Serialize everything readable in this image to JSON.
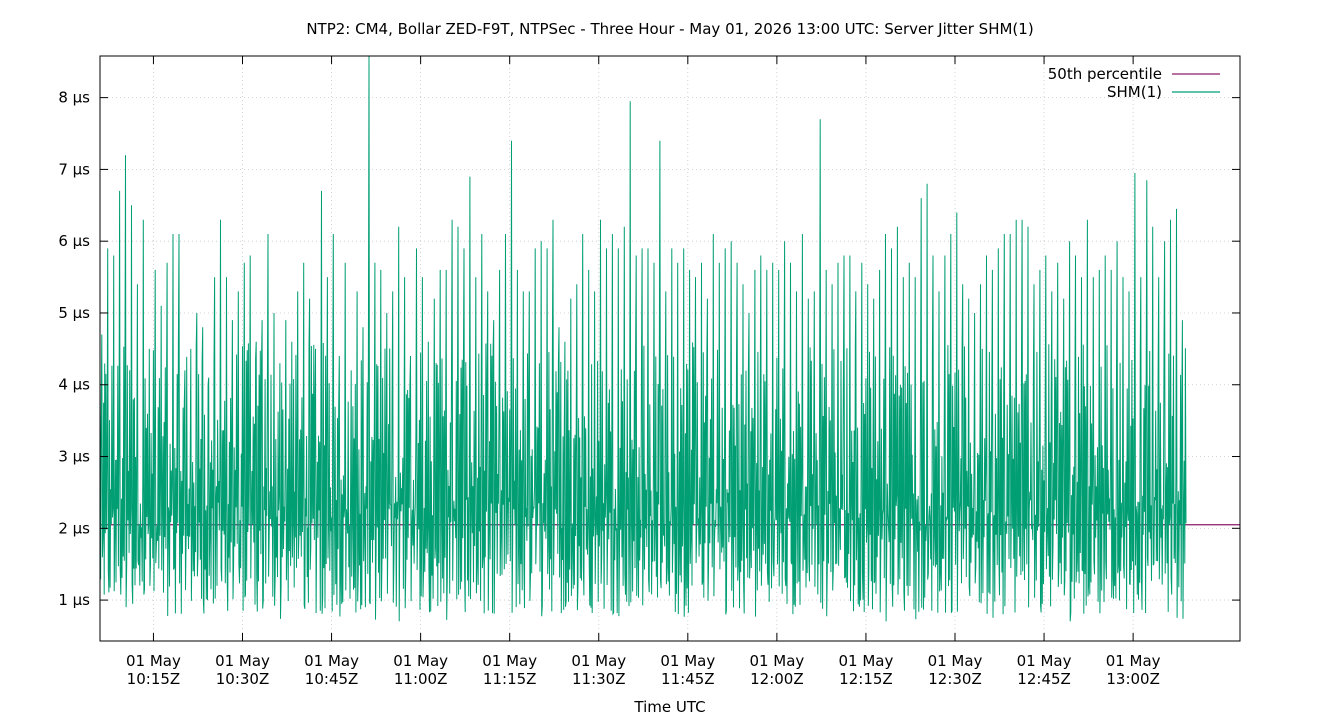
{
  "chart_data": {
    "type": "line",
    "title": "NTP2: CM4, Bollar ZED-F9T, NTPSec - Three Hour - May 01, 2026 13:00 UTC: Server Jitter SHM(1)",
    "xlabel": "Time UTC",
    "ylabel": "",
    "x_range": [
      "10:06",
      "13:18"
    ],
    "ylim": [
      0.43,
      8.58
    ],
    "y_ticks": [
      {
        "value": 1,
        "label": "1 µs"
      },
      {
        "value": 2,
        "label": "2 µs"
      },
      {
        "value": 3,
        "label": "3 µs"
      },
      {
        "value": 4,
        "label": "4 µs"
      },
      {
        "value": 5,
        "label": "5 µs"
      },
      {
        "value": 6,
        "label": "6 µs"
      },
      {
        "value": 7,
        "label": "7 µs"
      },
      {
        "value": 8,
        "label": "8 µs"
      }
    ],
    "x_ticks": [
      {
        "time": "10:15",
        "line1": "01 May",
        "line2": "10:15Z"
      },
      {
        "time": "10:30",
        "line1": "01 May",
        "line2": "10:30Z"
      },
      {
        "time": "10:45",
        "line1": "01 May",
        "line2": "10:45Z"
      },
      {
        "time": "11:00",
        "line1": "01 May",
        "line2": "11:00Z"
      },
      {
        "time": "11:15",
        "line1": "01 May",
        "line2": "11:15Z"
      },
      {
        "time": "11:30",
        "line1": "01 May",
        "line2": "11:30Z"
      },
      {
        "time": "11:45",
        "line1": "01 May",
        "line2": "11:45Z"
      },
      {
        "time": "12:00",
        "line1": "01 May",
        "line2": "12:00Z"
      },
      {
        "time": "12:15",
        "line1": "01 May",
        "line2": "12:15Z"
      },
      {
        "time": "12:30",
        "line1": "01 May",
        "line2": "12:30Z"
      },
      {
        "time": "12:45",
        "line1": "01 May",
        "line2": "12:45Z"
      },
      {
        "time": "13:00",
        "line1": "01 May",
        "line2": "13:00Z"
      }
    ],
    "grid": true,
    "legend_position": "top-right",
    "series": [
      {
        "name": "50th percentile",
        "color": "#8b1a6b",
        "kind": "constant",
        "value": 2.05
      },
      {
        "name": "SHM(1)",
        "color": "#009e73",
        "kind": "timeseries",
        "points": [
          [
            "10:06",
            4.7
          ],
          [
            "10:07",
            5.9
          ],
          [
            "10:08",
            5.8
          ],
          [
            "10:09",
            6.7
          ],
          [
            "10:10",
            7.2
          ],
          [
            "10:11",
            6.5
          ],
          [
            "10:12",
            5.4
          ],
          [
            "10:13",
            6.3
          ],
          [
            "10:14",
            4.5
          ],
          [
            "10:15",
            5.6
          ],
          [
            "10:16",
            5.1
          ],
          [
            "10:17",
            5.7
          ],
          [
            "10:18",
            6.1
          ],
          [
            "10:19",
            6.1
          ],
          [
            "10:20",
            4.2
          ],
          [
            "10:21",
            4.5
          ],
          [
            "10:22",
            5.0
          ],
          [
            "10:23",
            4.8
          ],
          [
            "10:24",
            4.1
          ],
          [
            "10:25",
            5.5
          ],
          [
            "10:26",
            6.3
          ],
          [
            "10:27",
            5.5
          ],
          [
            "10:28",
            4.9
          ],
          [
            "10:29",
            5.3
          ],
          [
            "10:30",
            5.7
          ],
          [
            "10:31",
            5.8
          ],
          [
            "10:32",
            4.6
          ],
          [
            "10:33",
            4.9
          ],
          [
            "10:34",
            6.1
          ],
          [
            "10:35",
            5.0
          ],
          [
            "10:36",
            4.3
          ],
          [
            "10:37",
            4.9
          ],
          [
            "10:38",
            4.6
          ],
          [
            "10:39",
            5.3
          ],
          [
            "10:40",
            5.7
          ],
          [
            "10:41",
            5.2
          ],
          [
            "10:42",
            4.5
          ],
          [
            "10:43",
            6.7
          ],
          [
            "10:44",
            5.5
          ],
          [
            "10:45",
            6.1
          ],
          [
            "10:46",
            4.4
          ],
          [
            "10:47",
            5.7
          ],
          [
            "10:48",
            4.2
          ],
          [
            "10:49",
            5.3
          ],
          [
            "10:50",
            4.8
          ],
          [
            "10:51",
            8.6
          ],
          [
            "10:52",
            5.7
          ],
          [
            "10:53",
            5.6
          ],
          [
            "10:54",
            5.0
          ],
          [
            "10:55",
            5.3
          ],
          [
            "10:56",
            6.2
          ],
          [
            "10:57",
            5.5
          ],
          [
            "10:58",
            4.4
          ],
          [
            "10:59",
            5.9
          ],
          [
            "11:00",
            5.5
          ],
          [
            "11:01",
            4.6
          ],
          [
            "11:02",
            5.2
          ],
          [
            "11:03",
            5.6
          ],
          [
            "11:04",
            5.6
          ],
          [
            "11:05",
            6.3
          ],
          [
            "11:06",
            6.2
          ],
          [
            "11:07",
            5.9
          ],
          [
            "11:08",
            6.9
          ],
          [
            "11:09",
            5.5
          ],
          [
            "11:10",
            6.1
          ],
          [
            "11:11",
            5.3
          ],
          [
            "11:12",
            4.9
          ],
          [
            "11:13",
            5.6
          ],
          [
            "11:14",
            6.1
          ],
          [
            "11:15",
            7.4
          ],
          [
            "11:16",
            5.6
          ],
          [
            "11:17",
            5.3
          ],
          [
            "11:18",
            5.3
          ],
          [
            "11:19",
            5.9
          ],
          [
            "11:20",
            6.0
          ],
          [
            "11:21",
            5.9
          ],
          [
            "11:22",
            6.3
          ],
          [
            "11:23",
            4.8
          ],
          [
            "11:24",
            4.6
          ],
          [
            "11:25",
            5.2
          ],
          [
            "11:26",
            5.4
          ],
          [
            "11:27",
            6.1
          ],
          [
            "11:28",
            5.6
          ],
          [
            "11:29",
            5.3
          ],
          [
            "11:30",
            6.3
          ],
          [
            "11:31",
            5.9
          ],
          [
            "11:32",
            6.1
          ],
          [
            "11:33",
            5.9
          ],
          [
            "11:34",
            6.2
          ],
          [
            "11:35",
            7.95
          ],
          [
            "11:36",
            5.8
          ],
          [
            "11:37",
            5.9
          ],
          [
            "11:38",
            5.9
          ],
          [
            "11:39",
            5.7
          ],
          [
            "11:40",
            7.4
          ],
          [
            "11:41",
            5.3
          ],
          [
            "11:42",
            5.9
          ],
          [
            "11:43",
            5.7
          ],
          [
            "11:44",
            5.9
          ],
          [
            "11:45",
            5.6
          ],
          [
            "11:46",
            5.5
          ],
          [
            "11:47",
            5.7
          ],
          [
            "11:48",
            5.2
          ],
          [
            "11:49",
            6.1
          ],
          [
            "11:50",
            5.7
          ],
          [
            "11:51",
            5.9
          ],
          [
            "11:52",
            6.0
          ],
          [
            "11:53",
            5.7
          ],
          [
            "11:54",
            5.4
          ],
          [
            "11:55",
            5.0
          ],
          [
            "11:56",
            5.6
          ],
          [
            "11:57",
            5.8
          ],
          [
            "11:58",
            5.6
          ],
          [
            "11:59",
            5.7
          ],
          [
            "12:00",
            5.6
          ],
          [
            "12:01",
            6.0
          ],
          [
            "12:02",
            5.7
          ],
          [
            "12:03",
            5.3
          ],
          [
            "12:04",
            6.1
          ],
          [
            "12:05",
            5.2
          ],
          [
            "12:06",
            5.3
          ],
          [
            "12:07",
            7.7
          ],
          [
            "12:08",
            5.6
          ],
          [
            "12:09",
            5.4
          ],
          [
            "12:10",
            5.7
          ],
          [
            "12:11",
            5.8
          ],
          [
            "12:12",
            5.8
          ],
          [
            "12:13",
            5.3
          ],
          [
            "12:14",
            5.7
          ],
          [
            "12:15",
            5.4
          ],
          [
            "12:16",
            5.2
          ],
          [
            "12:17",
            5.6
          ],
          [
            "12:18",
            6.1
          ],
          [
            "12:19",
            5.9
          ],
          [
            "12:20",
            6.2
          ],
          [
            "12:21",
            5.5
          ],
          [
            "12:22",
            5.7
          ],
          [
            "12:23",
            5.5
          ],
          [
            "12:24",
            6.6
          ],
          [
            "12:25",
            6.8
          ],
          [
            "12:26",
            5.8
          ],
          [
            "12:27",
            5.3
          ],
          [
            "12:28",
            5.8
          ],
          [
            "12:29",
            6.1
          ],
          [
            "12:30",
            6.4
          ],
          [
            "12:31",
            5.4
          ],
          [
            "12:32",
            5.2
          ],
          [
            "12:33",
            5.0
          ],
          [
            "12:34",
            5.4
          ],
          [
            "12:35",
            5.8
          ],
          [
            "12:36",
            5.6
          ],
          [
            "12:37",
            5.9
          ],
          [
            "12:38",
            6.1
          ],
          [
            "12:39",
            6.1
          ],
          [
            "12:40",
            6.3
          ],
          [
            "12:41",
            6.3
          ],
          [
            "12:42",
            6.2
          ],
          [
            "12:43",
            5.4
          ],
          [
            "12:44",
            5.6
          ],
          [
            "12:45",
            5.8
          ],
          [
            "12:46",
            5.3
          ],
          [
            "12:47",
            5.7
          ],
          [
            "12:48",
            5.2
          ],
          [
            "12:49",
            6.0
          ],
          [
            "12:50",
            5.8
          ],
          [
            "12:51",
            5.5
          ],
          [
            "12:52",
            6.3
          ],
          [
            "12:53",
            5.5
          ],
          [
            "12:54",
            5.6
          ],
          [
            "12:55",
            5.8
          ],
          [
            "12:56",
            5.6
          ],
          [
            "12:57",
            6.0
          ],
          [
            "12:58",
            5.5
          ],
          [
            "12:59",
            5.3
          ],
          [
            "13:00",
            6.95
          ],
          [
            "13:01",
            5.5
          ],
          [
            "13:02",
            6.85
          ],
          [
            "13:03",
            6.2
          ],
          [
            "13:04",
            5.5
          ],
          [
            "13:05",
            6.0
          ],
          [
            "13:06",
            6.3
          ],
          [
            "13:07",
            6.45
          ],
          [
            "13:08",
            4.9
          ]
        ]
      }
    ]
  }
}
